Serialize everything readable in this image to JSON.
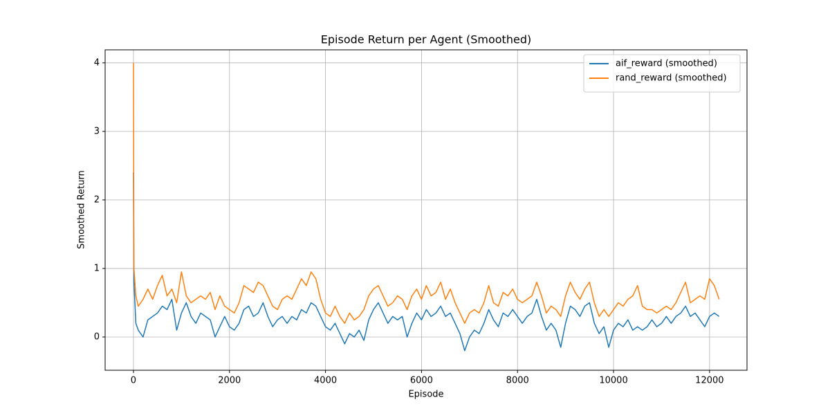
{
  "chart_data": {
    "type": "line",
    "title": "Episode Return per Agent (Smoothed)",
    "xlabel": "Episode",
    "ylabel": "Smoothed Return",
    "x": [
      0,
      10,
      50,
      100,
      200,
      300,
      400,
      500,
      600,
      700,
      800,
      900,
      1000,
      1100,
      1200,
      1300,
      1400,
      1500,
      1600,
      1700,
      1800,
      1900,
      2000,
      2100,
      2200,
      2300,
      2400,
      2500,
      2600,
      2700,
      2800,
      2900,
      3000,
      3100,
      3200,
      3300,
      3400,
      3500,
      3600,
      3700,
      3800,
      3900,
      4000,
      4100,
      4200,
      4300,
      4400,
      4500,
      4600,
      4700,
      4800,
      4900,
      5000,
      5100,
      5200,
      5300,
      5400,
      5500,
      5600,
      5700,
      5800,
      5900,
      6000,
      6100,
      6200,
      6300,
      6400,
      6500,
      6600,
      6700,
      6800,
      6900,
      7000,
      7100,
      7200,
      7300,
      7400,
      7500,
      7600,
      7700,
      7800,
      7900,
      8000,
      8100,
      8200,
      8300,
      8400,
      8500,
      8600,
      8700,
      8800,
      8900,
      9000,
      9100,
      9200,
      9300,
      9400,
      9500,
      9600,
      9700,
      9800,
      9900,
      10000,
      10100,
      10200,
      10300,
      10400,
      10500,
      10600,
      10700,
      10800,
      10900,
      11000,
      11100,
      11200,
      11300,
      11400,
      11500,
      11600,
      11700,
      11800,
      11900,
      12000,
      12100,
      12200
    ],
    "series": [
      {
        "name": "aif_reward (smoothed)",
        "color": "#1f77b4",
        "values": [
          2.4,
          0.8,
          0.2,
          0.1,
          0.0,
          0.25,
          0.3,
          0.35,
          0.45,
          0.4,
          0.55,
          0.1,
          0.35,
          0.5,
          0.3,
          0.2,
          0.35,
          0.3,
          0.25,
          0.0,
          0.15,
          0.3,
          0.15,
          0.1,
          0.2,
          0.4,
          0.45,
          0.3,
          0.35,
          0.5,
          0.3,
          0.15,
          0.25,
          0.3,
          0.2,
          0.3,
          0.25,
          0.4,
          0.35,
          0.5,
          0.45,
          0.3,
          0.15,
          0.1,
          0.2,
          0.05,
          -0.1,
          0.05,
          0.0,
          0.1,
          -0.05,
          0.25,
          0.4,
          0.5,
          0.35,
          0.2,
          0.3,
          0.25,
          0.3,
          0.0,
          0.2,
          0.35,
          0.25,
          0.4,
          0.3,
          0.35,
          0.45,
          0.3,
          0.35,
          0.2,
          0.05,
          -0.2,
          0.0,
          0.1,
          0.05,
          0.2,
          0.4,
          0.25,
          0.15,
          0.35,
          0.3,
          0.4,
          0.3,
          0.2,
          0.3,
          0.35,
          0.55,
          0.3,
          0.1,
          0.2,
          0.1,
          -0.15,
          0.2,
          0.45,
          0.4,
          0.3,
          0.45,
          0.5,
          0.2,
          0.05,
          0.15,
          -0.15,
          0.1,
          0.2,
          0.15,
          0.25,
          0.1,
          0.15,
          0.1,
          0.15,
          0.25,
          0.15,
          0.2,
          0.3,
          0.2,
          0.3,
          0.35,
          0.45,
          0.3,
          0.35,
          0.25,
          0.15,
          0.3,
          0.35,
          0.3
        ]
      },
      {
        "name": "rand_reward (smoothed)",
        "color": "#ff7f0e",
        "values": [
          4.0,
          1.0,
          0.6,
          0.45,
          0.55,
          0.7,
          0.55,
          0.75,
          0.9,
          0.6,
          0.7,
          0.5,
          0.95,
          0.6,
          0.5,
          0.55,
          0.6,
          0.55,
          0.65,
          0.4,
          0.6,
          0.45,
          0.4,
          0.35,
          0.5,
          0.75,
          0.7,
          0.65,
          0.8,
          0.75,
          0.6,
          0.45,
          0.4,
          0.55,
          0.6,
          0.55,
          0.7,
          0.85,
          0.75,
          0.95,
          0.85,
          0.55,
          0.35,
          0.3,
          0.45,
          0.3,
          0.2,
          0.35,
          0.25,
          0.3,
          0.4,
          0.6,
          0.7,
          0.75,
          0.6,
          0.45,
          0.5,
          0.6,
          0.55,
          0.4,
          0.6,
          0.7,
          0.55,
          0.75,
          0.6,
          0.65,
          0.8,
          0.55,
          0.7,
          0.5,
          0.35,
          0.2,
          0.35,
          0.4,
          0.35,
          0.5,
          0.75,
          0.5,
          0.45,
          0.65,
          0.6,
          0.7,
          0.55,
          0.5,
          0.55,
          0.6,
          0.8,
          0.6,
          0.35,
          0.45,
          0.4,
          0.3,
          0.6,
          0.8,
          0.65,
          0.55,
          0.7,
          0.8,
          0.5,
          0.3,
          0.4,
          0.3,
          0.4,
          0.5,
          0.45,
          0.55,
          0.6,
          0.75,
          0.45,
          0.4,
          0.4,
          0.35,
          0.4,
          0.45,
          0.4,
          0.5,
          0.65,
          0.8,
          0.5,
          0.55,
          0.6,
          0.55,
          0.85,
          0.75,
          0.55
        ]
      }
    ],
    "xlim": [
      -590,
      12780
    ],
    "ylim": [
      -0.485,
      4.19
    ],
    "xticks": [
      0,
      2000,
      4000,
      6000,
      8000,
      10000,
      12000
    ],
    "yticks": [
      0,
      1,
      2,
      3,
      4
    ],
    "grid": true,
    "legend": "upper right"
  }
}
